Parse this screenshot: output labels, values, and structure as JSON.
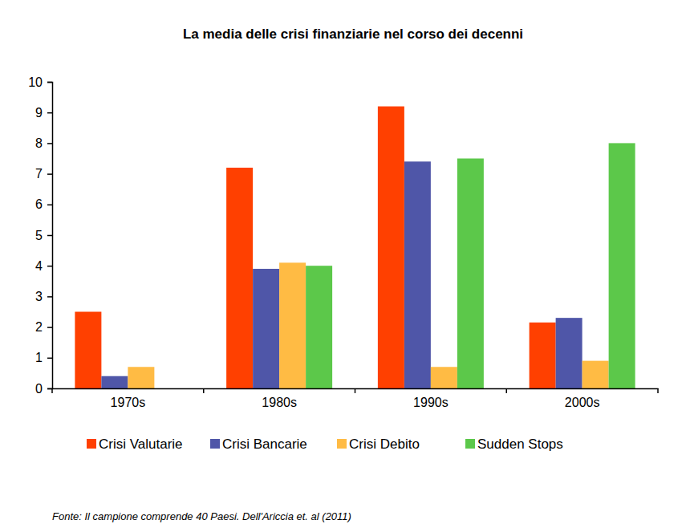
{
  "chart_data": {
    "type": "bar",
    "title": "La media delle crisi finanziarie nel corso dei decenni",
    "categories": [
      "1970s",
      "1980s",
      "1990s",
      "2000s"
    ],
    "series": [
      {
        "name": "Crisi Valutarie",
        "color": "#ff4000",
        "values": [
          2.5,
          7.2,
          9.2,
          2.15
        ]
      },
      {
        "name": "Crisi Bancarie",
        "color": "#4f56a8",
        "values": [
          0.4,
          3.9,
          7.4,
          2.3
        ]
      },
      {
        "name": "Crisi Debito",
        "color": "#ffbb44",
        "values": [
          0.7,
          4.1,
          0.7,
          0.9
        ]
      },
      {
        "name": "Sudden Stops",
        "color": "#5cc84a",
        "values": [
          null,
          4.0,
          7.5,
          8.0
        ]
      }
    ],
    "ylim": [
      0,
      10
    ],
    "yticks": [
      0,
      1,
      2,
      3,
      4,
      5,
      6,
      7,
      8,
      9,
      10
    ],
    "grid": false,
    "legend": "bottom",
    "source": "Fonte: Il campione comprende 40 Paesi. Dell'Ariccia et. al (2011)"
  }
}
